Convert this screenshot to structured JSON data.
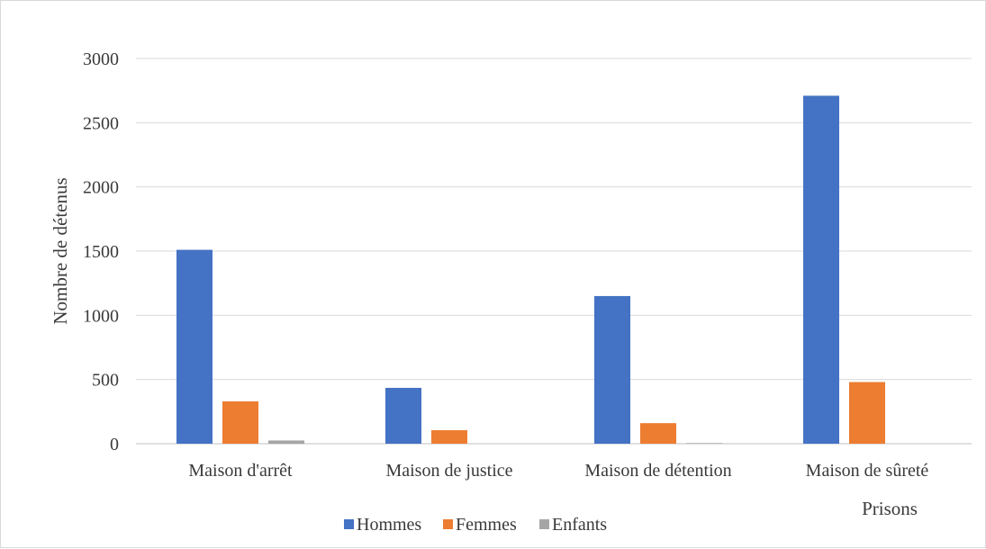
{
  "chart_data": {
    "type": "bar",
    "title": "",
    "ylabel": "Nombre de détenus",
    "xlabel": "Prisons",
    "ylim": [
      0,
      3000
    ],
    "yticks": [
      0,
      500,
      1000,
      1500,
      2000,
      2500,
      3000
    ],
    "grid": true,
    "legend_position": "bottom",
    "categories": [
      "Maison d'arrêt",
      "Maison de justice",
      "Maison de détention",
      "Maison de sûreté"
    ],
    "series": [
      {
        "name": "Hommes",
        "color": "#4472c4",
        "values": [
          1510,
          435,
          1150,
          2710
        ]
      },
      {
        "name": "Femmes",
        "color": "#ed7d31",
        "values": [
          330,
          105,
          160,
          480
        ]
      },
      {
        "name": "Enfants",
        "color": "#a5a5a5",
        "values": [
          25,
          0,
          5,
          0
        ]
      }
    ]
  }
}
